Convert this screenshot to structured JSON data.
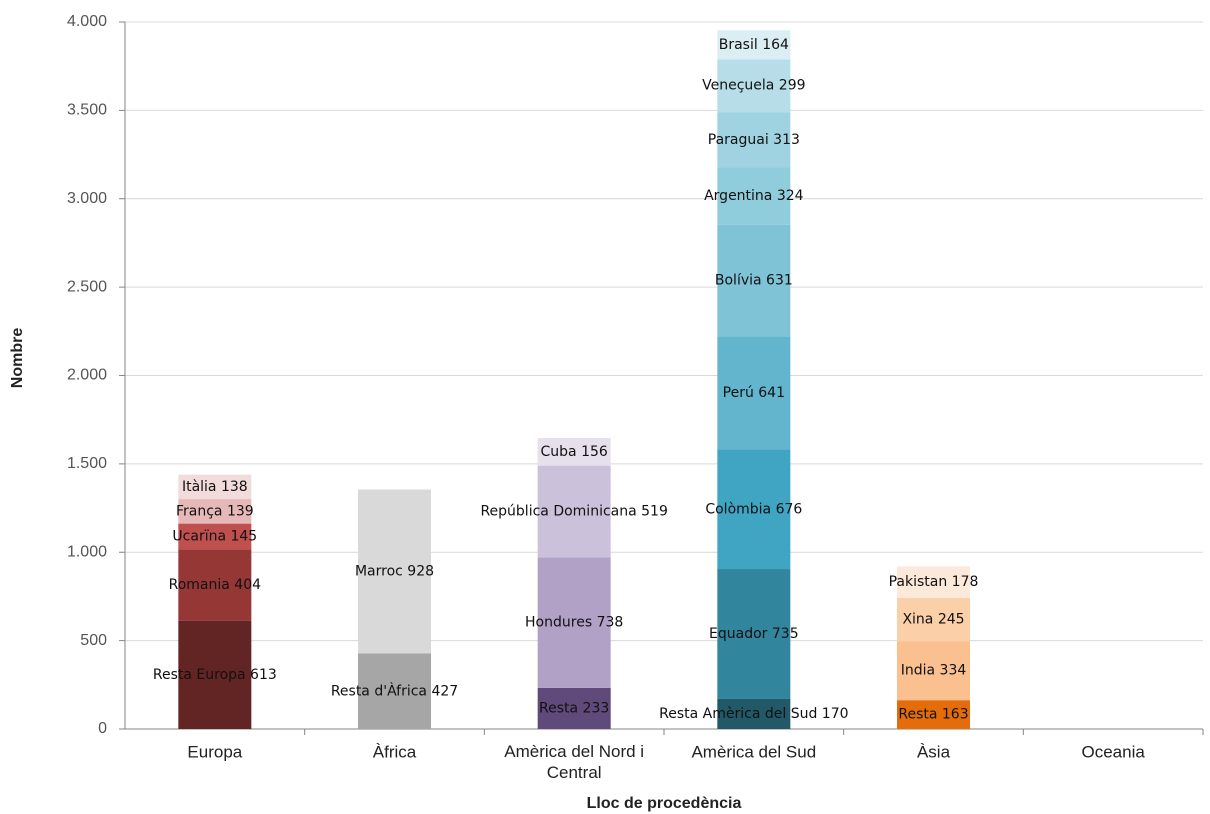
{
  "chart_data": {
    "type": "stacked-bar",
    "x_label": "Lloc de procedència",
    "y_label": "Nombre",
    "categories": [
      "Europa",
      "Àfrica",
      "Amèrica del Nord i Central",
      "Amèrica del Sud",
      "Àsia",
      "Oceania"
    ],
    "stacks": [
      {
        "values": [
          613,
          404,
          145,
          139,
          138
        ],
        "value_labels": [
          "Resta Europa 613",
          "Romania 404",
          "Ucarïna 145",
          "França 139",
          "Itàlia 138"
        ],
        "colors": [
          "#632523",
          "#953735",
          "#c0504d",
          "#e6b9b8",
          "#f2dcdb"
        ]
      },
      {
        "values": [
          427,
          928
        ],
        "value_labels": [
          "Resta d'Àfrica 427",
          "Marroc 928"
        ],
        "colors": [
          "#a6a6a6",
          "#d9d9d9"
        ]
      },
      {
        "values": [
          233,
          738,
          519,
          156
        ],
        "value_labels": [
          "Resta 233",
          "Hondures 738",
          "República Dominicana 519",
          "Cuba 156"
        ],
        "colors": [
          "#604a7b",
          "#b2a1c7",
          "#ccc1da",
          "#e5e0ec"
        ]
      },
      {
        "values": [
          170,
          735,
          676,
          641,
          631,
          324,
          313,
          299,
          164
        ],
        "value_labels": [
          "Resta Amèrica del Sud 170",
          "Equador 735",
          "Colòmbia 676",
          "Perú 641",
          "Bolívia 631",
          "Argentina 324",
          "Paraguai 313",
          "Veneçuela 299",
          "Brasil 164"
        ],
        "colors": [
          "#215968",
          "#31859c",
          "#3fa5c2",
          "#62b5cc",
          "#7ec3d6",
          "#8fccdc",
          "#a0d3e1",
          "#b7dee8",
          "#daeef3"
        ]
      },
      {
        "values": [
          163,
          334,
          245,
          178
        ],
        "value_labels": [
          "Resta 163",
          "India 334",
          "Xina 245",
          "Pakistan 178"
        ],
        "colors": [
          "#e46c0a",
          "#fac090",
          "#fbd0a8",
          "#fde9d9"
        ]
      },
      {
        "values": [],
        "value_labels": [],
        "colors": []
      }
    ],
    "ylim": [
      0,
      4000
    ],
    "yticks": [
      0,
      500,
      {
        "value": 1000,
        "label": "1.000"
      },
      {
        "value": 1500,
        "label": "1.500"
      },
      {
        "value": 2000,
        "label": "2.000"
      },
      {
        "value": 2500,
        "label": "2.500"
      },
      {
        "value": 3000,
        "label": "3.000"
      },
      {
        "value": 3500,
        "label": "3.500"
      },
      {
        "value": 4000,
        "label": "4.000"
      }
    ],
    "grid": true
  }
}
